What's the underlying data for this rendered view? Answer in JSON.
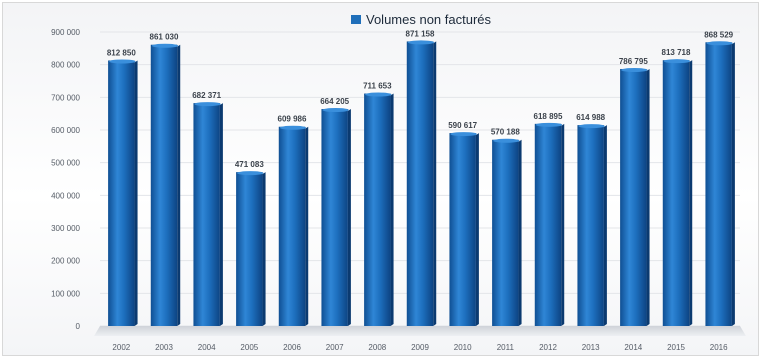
{
  "chart_data": {
    "type": "bar",
    "title": "",
    "xlabel": "",
    "ylabel": "",
    "legend_position": "top-center",
    "grid": true,
    "ylim": [
      0,
      900000
    ],
    "y_ticks": [
      0,
      100000,
      200000,
      300000,
      400000,
      500000,
      600000,
      700000,
      800000,
      900000
    ],
    "y_tick_labels": [
      "0",
      "100 000",
      "200 000",
      "300 000",
      "400 000",
      "500 000",
      "600 000",
      "700 000",
      "800 000",
      "900 000"
    ],
    "categories": [
      "2002",
      "2003",
      "2004",
      "2005",
      "2006",
      "2007",
      "2008",
      "2009",
      "2010",
      "2011",
      "2012",
      "2013",
      "2014",
      "2015",
      "2016"
    ],
    "series": [
      {
        "name": "Volumes non facturés",
        "color": "#1f6fba",
        "values": [
          812850,
          861030,
          682371,
          471083,
          609986,
          664205,
          711653,
          871158,
          590617,
          570188,
          618895,
          614988,
          786795,
          813718,
          868529
        ],
        "data_labels": [
          "812 850",
          "861 030",
          "682 371",
          "471 083",
          "609 986",
          "664 205",
          "711 653",
          "871 158",
          "590 617",
          "570 188",
          "618 895",
          "614 988",
          "786 795",
          "813 718",
          "868 529"
        ]
      }
    ]
  }
}
